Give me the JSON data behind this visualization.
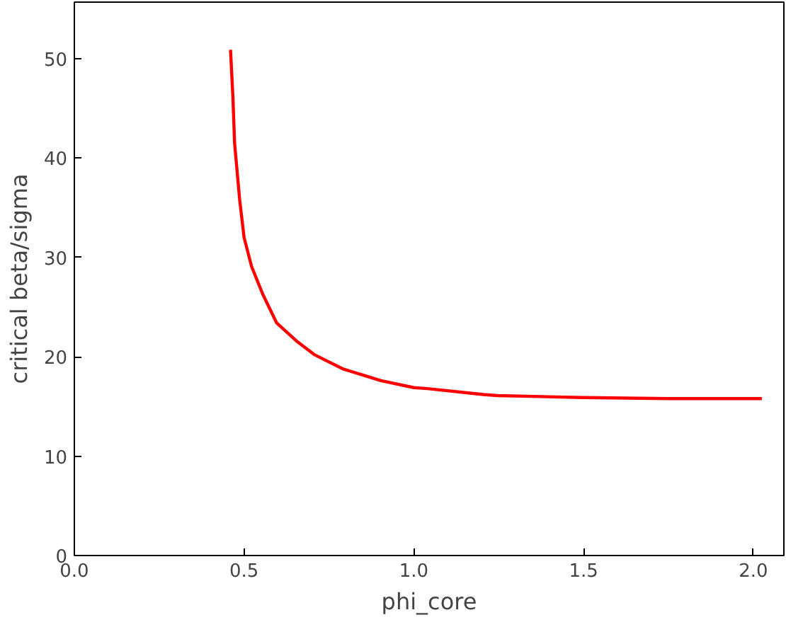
{
  "chart_data": {
    "type": "line",
    "xlabel": "phi_core",
    "ylabel": "critical beta/sigma",
    "xlim": [
      0,
      2.09
    ],
    "ylim": [
      0,
      55.7
    ],
    "xticks": [
      {
        "value": 0,
        "label": "0.0"
      },
      {
        "value": 0.5,
        "label": "0.5"
      },
      {
        "value": 1,
        "label": "1.0"
      },
      {
        "value": 1.5,
        "label": "1.5"
      },
      {
        "value": 2,
        "label": "2.0"
      }
    ],
    "yticks": [
      0,
      10,
      20,
      30,
      40,
      50
    ],
    "grid": false,
    "marker": "none",
    "line_style": "solid",
    "series": [
      {
        "color": "#ff0000",
        "x": [
          0.46,
          0.467,
          0.472,
          0.487,
          0.5,
          0.522,
          0.555,
          0.596,
          0.654,
          0.708,
          0.79,
          0.903,
          1.0,
          1.04,
          1.205,
          1.246,
          1.495,
          1.75,
          2.025
        ],
        "values": [
          50.9,
          46.2,
          41.5,
          35.8,
          32.0,
          29.1,
          26.3,
          23.4,
          21.6,
          20.2,
          18.8,
          17.6,
          16.9,
          16.8,
          16.2,
          16.1,
          15.9,
          15.8,
          15.8
        ]
      }
    ]
  }
}
